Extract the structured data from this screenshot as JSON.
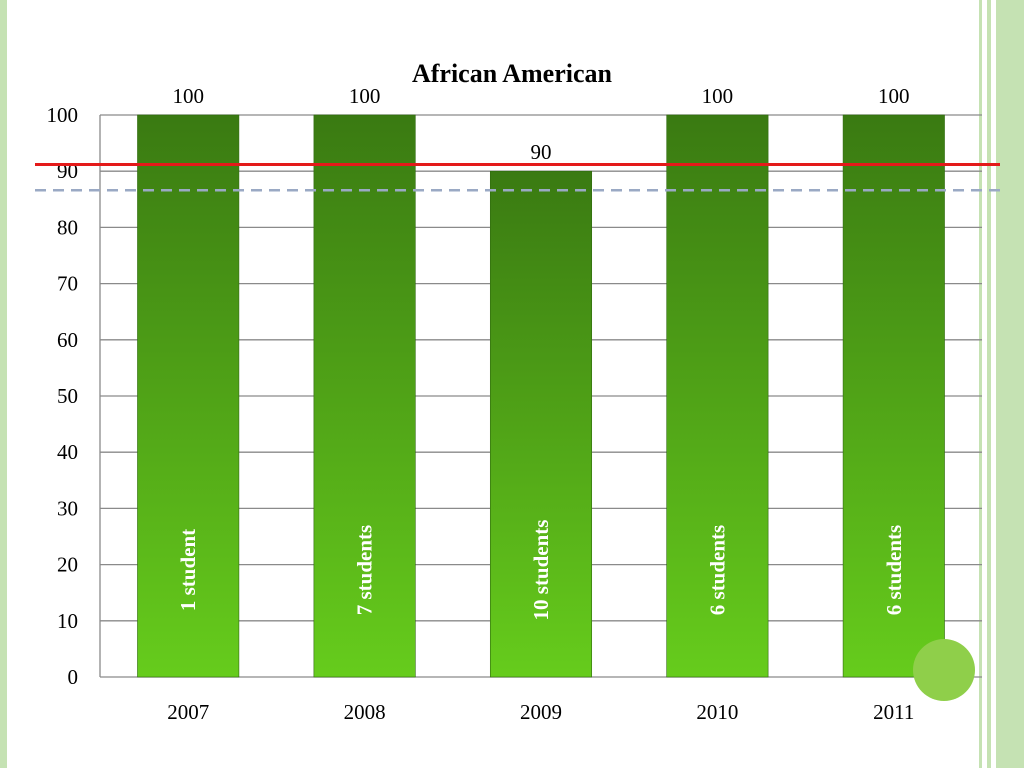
{
  "chart_data": {
    "type": "bar",
    "title": "African American",
    "xlabel": "",
    "ylabel": "",
    "categories": [
      "2007",
      "2008",
      "2009",
      "2010",
      "2011"
    ],
    "values": [
      100,
      100,
      90,
      100,
      100
    ],
    "data_labels": [
      "100",
      "100",
      "90",
      "100",
      "100"
    ],
    "bar_labels": [
      "1 student",
      "7 students",
      "10 students",
      "6 students",
      "6 students"
    ],
    "ylim": [
      0,
      100
    ],
    "yticks": [
      "0",
      "10",
      "20",
      "30",
      "40",
      "50",
      "60",
      "70",
      "80",
      "90",
      "100"
    ],
    "grid": "horizontal",
    "reference_lines": [
      {
        "y": 91.2,
        "style": "solid",
        "color": "#e41a1a"
      },
      {
        "y": 86.6,
        "style": "dashed",
        "color": "#9aa9c4"
      }
    ],
    "bar_color_top": "#3a7a12",
    "bar_color_bottom": "#66cc1c"
  },
  "theme": {
    "frame_green": "#c5e2b3",
    "circle_green": "#8fcf4a"
  }
}
